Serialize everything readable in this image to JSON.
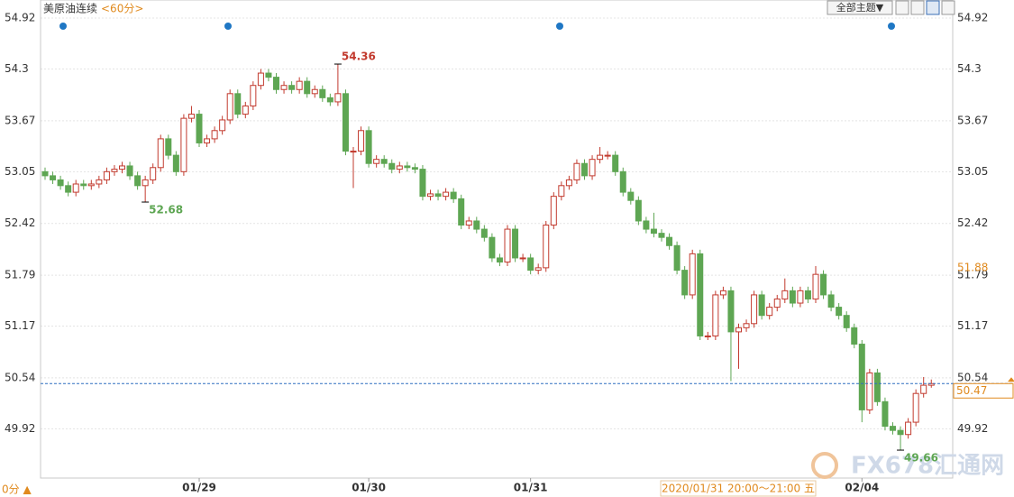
{
  "chart_data": {
    "type": "candlestick",
    "title": "美原油连续",
    "period": "<60分>",
    "toolbar": "全部主题▼",
    "period_tab": "0分 ▲",
    "crosshair_time": "2020/01/31 20:00～21:00 五",
    "watermark": "FX678汇通网",
    "up_color": "#c23a2e",
    "down_color": "#5ea653",
    "grid": true,
    "ylim": [
      49.32,
      55.14
    ],
    "yticks": [
      49.92,
      50.54,
      51.17,
      51.79,
      52.42,
      53.05,
      53.67,
      54.3,
      54.92
    ],
    "categories": [
      null,
      null,
      null,
      null,
      null,
      null,
      null,
      null,
      null,
      null,
      null,
      null,
      null,
      null,
      null,
      null,
      null,
      null,
      null,
      null,
      "01/29",
      null,
      null,
      null,
      null,
      null,
      null,
      null,
      null,
      null,
      null,
      null,
      null,
      null,
      null,
      null,
      null,
      null,
      null,
      null,
      null,
      null,
      "01/30",
      null,
      null,
      null,
      null,
      null,
      null,
      null,
      null,
      null,
      null,
      null,
      null,
      null,
      null,
      null,
      null,
      null,
      null,
      null,
      null,
      "01/31",
      null,
      null,
      null,
      null,
      null,
      null,
      null,
      null,
      null,
      null,
      null,
      null,
      null,
      null,
      null,
      null,
      null,
      null,
      null,
      null,
      null,
      null,
      null,
      null,
      null,
      null,
      null,
      null,
      null,
      null,
      null,
      null,
      null,
      null,
      null,
      null,
      null,
      null,
      null,
      null,
      null,
      null,
      "02/04",
      null,
      null,
      null,
      null,
      null,
      null,
      null,
      null,
      null
    ],
    "open": [
      53.05,
      53.0,
      52.95,
      52.88,
      52.8,
      52.9,
      52.88,
      52.9,
      52.95,
      53.05,
      53.08,
      53.12,
      53.0,
      52.88,
      52.95,
      53.1,
      53.45,
      53.25,
      53.05,
      53.7,
      53.75,
      53.4,
      53.45,
      53.55,
      53.68,
      54.0,
      53.75,
      53.85,
      54.1,
      54.25,
      54.2,
      54.05,
      54.1,
      54.05,
      54.15,
      54.0,
      54.05,
      53.95,
      53.9,
      54.0,
      53.3,
      53.3,
      53.55,
      53.15,
      53.2,
      53.15,
      53.08,
      53.12,
      53.1,
      53.08,
      52.75,
      52.78,
      52.75,
      52.8,
      52.72,
      52.4,
      52.45,
      52.35,
      52.25,
      52.0,
      51.95,
      52.35,
      52.0,
      52.0,
      51.85,
      51.88,
      52.4,
      52.75,
      52.88,
      52.95,
      53.15,
      53.0,
      53.2,
      53.25,
      53.25,
      53.05,
      52.8,
      52.7,
      52.45,
      52.35,
      52.3,
      52.25,
      52.15,
      51.85,
      51.55,
      52.05,
      51.05,
      51.05,
      51.55,
      51.6,
      51.1,
      51.15,
      51.2,
      51.55,
      51.3,
      51.4,
      51.5,
      51.6,
      51.45,
      51.6,
      51.5,
      51.8,
      51.55,
      51.4,
      51.3,
      51.15,
      50.95,
      50.15,
      50.6,
      50.25,
      49.95,
      49.9,
      49.85,
      50.0,
      50.35,
      50.45
    ],
    "high": [
      53.1,
      53.05,
      53.0,
      52.93,
      52.95,
      52.95,
      52.95,
      53.0,
      53.1,
      53.13,
      53.17,
      53.17,
      53.05,
      53.0,
      53.15,
      53.5,
      53.5,
      53.3,
      53.75,
      53.85,
      53.8,
      53.5,
      53.6,
      53.73,
      54.05,
      54.05,
      53.9,
      54.15,
      54.3,
      54.3,
      54.25,
      54.15,
      54.15,
      54.2,
      54.2,
      54.1,
      54.1,
      54.0,
      54.36,
      54.05,
      53.35,
      53.6,
      53.6,
      53.25,
      53.25,
      53.2,
      53.17,
      53.17,
      53.15,
      53.13,
      52.83,
      52.83,
      52.85,
      52.85,
      52.77,
      52.5,
      52.5,
      52.4,
      52.3,
      52.05,
      52.4,
      52.4,
      52.05,
      52.05,
      51.93,
      52.45,
      52.8,
      52.93,
      53.0,
      53.2,
      53.2,
      53.25,
      53.35,
      53.3,
      53.3,
      53.1,
      52.85,
      52.75,
      52.5,
      52.55,
      52.35,
      52.3,
      52.2,
      51.9,
      52.1,
      52.1,
      51.1,
      51.6,
      51.65,
      51.65,
      51.2,
      51.25,
      51.6,
      51.6,
      51.45,
      51.55,
      51.75,
      51.65,
      51.65,
      51.65,
      51.9,
      51.85,
      51.6,
      51.45,
      51.35,
      51.2,
      51.0,
      50.65,
      50.65,
      50.3,
      50.0,
      49.95,
      50.05,
      50.4,
      50.55,
      50.52
    ],
    "low": [
      52.95,
      52.9,
      52.83,
      52.75,
      52.75,
      52.83,
      52.83,
      52.85,
      52.9,
      53.0,
      53.03,
      52.95,
      52.83,
      52.68,
      52.9,
      53.05,
      53.2,
      53.0,
      53.0,
      53.65,
      53.35,
      53.35,
      53.4,
      53.5,
      53.63,
      53.7,
      53.7,
      53.8,
      54.05,
      54.15,
      54.0,
      54.0,
      54.0,
      54.0,
      53.95,
      53.95,
      53.9,
      53.85,
      53.85,
      53.25,
      52.85,
      53.25,
      53.1,
      53.1,
      53.1,
      53.03,
      53.03,
      53.05,
      53.03,
      52.7,
      52.7,
      52.7,
      52.7,
      52.67,
      52.35,
      52.35,
      52.3,
      52.2,
      51.95,
      51.9,
      51.9,
      51.95,
      51.95,
      51.8,
      51.8,
      51.83,
      52.35,
      52.7,
      52.83,
      52.9,
      52.95,
      52.95,
      53.15,
      53.2,
      53.0,
      52.75,
      52.65,
      52.4,
      52.3,
      52.25,
      52.2,
      52.1,
      51.8,
      51.5,
      51.5,
      51.0,
      51.0,
      51.0,
      51.5,
      50.5,
      50.65,
      51.1,
      51.15,
      51.25,
      51.25,
      51.35,
      51.45,
      51.4,
      51.4,
      51.45,
      51.45,
      51.5,
      51.35,
      51.25,
      51.1,
      50.9,
      50.0,
      50.1,
      50.2,
      49.9,
      49.85,
      49.66,
      49.8,
      49.95,
      50.3,
      50.42
    ],
    "close": [
      53.0,
      52.95,
      52.88,
      52.8,
      52.9,
      52.88,
      52.9,
      52.95,
      53.05,
      53.08,
      53.12,
      53.0,
      52.88,
      52.95,
      53.1,
      53.45,
      53.25,
      53.05,
      53.7,
      53.75,
      53.4,
      53.45,
      53.55,
      53.68,
      54.0,
      53.75,
      53.85,
      54.1,
      54.25,
      54.2,
      54.05,
      54.1,
      54.05,
      54.15,
      54.0,
      54.05,
      53.95,
      53.9,
      54.0,
      53.3,
      53.3,
      53.55,
      53.15,
      53.2,
      53.15,
      53.08,
      53.12,
      53.1,
      53.08,
      52.75,
      52.78,
      52.75,
      52.8,
      52.72,
      52.4,
      52.45,
      52.35,
      52.25,
      52.0,
      51.95,
      52.35,
      52.0,
      52.0,
      51.85,
      51.88,
      52.4,
      52.75,
      52.88,
      52.95,
      53.15,
      53.0,
      53.2,
      53.25,
      53.25,
      53.05,
      52.8,
      52.7,
      52.45,
      52.35,
      52.3,
      52.25,
      52.15,
      51.85,
      51.55,
      52.05,
      51.05,
      51.05,
      51.55,
      51.6,
      51.1,
      51.15,
      51.2,
      51.55,
      51.3,
      51.4,
      51.5,
      51.6,
      51.45,
      51.6,
      51.5,
      51.8,
      51.55,
      51.4,
      51.3,
      51.15,
      50.95,
      50.15,
      50.6,
      50.25,
      49.95,
      49.9,
      49.85,
      50.0,
      50.35,
      50.45,
      50.47
    ],
    "extremes": [
      52.68,
      54.36,
      49.66
    ],
    "last": 50.47,
    "crosshair_value": 51.88
  }
}
